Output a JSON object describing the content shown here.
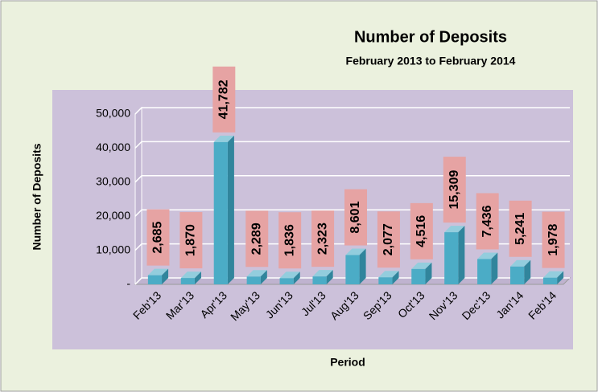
{
  "chart_data": {
    "type": "bar",
    "title": "Number of Deposits",
    "subtitle": "February 2013 to February 2014",
    "x_label": "Period",
    "y_label": "Number of Deposits",
    "categories": [
      "Feb'13",
      "Mar'13",
      "Apr'13",
      "May'13",
      "Jun'13",
      "Jul'13",
      "Aug'13",
      "Sep'13",
      "Oct'13",
      "Nov'13",
      "Dec'13",
      "Jan'14",
      "Feb'14"
    ],
    "values": [
      2685,
      1870,
      41782,
      2289,
      1836,
      2323,
      8601,
      2077,
      4516,
      15309,
      7436,
      5241,
      1978
    ],
    "value_labels": [
      "2,685",
      "1,870",
      "41,782",
      "2,289",
      "1,836",
      "2,323",
      "8,601",
      "2,077",
      "4,516",
      "15,309",
      "7,436",
      "5,241",
      "1,978"
    ],
    "color": "#4bacc6",
    "label_box_color": "#e6a3a3",
    "ylim": [
      0,
      50000
    ],
    "yticks": [
      {
        "value": 0,
        "label": "-"
      },
      {
        "value": 10000,
        "label": "10,000"
      },
      {
        "value": 20000,
        "label": "20,000"
      },
      {
        "value": 30000,
        "label": "30,000"
      },
      {
        "value": 40000,
        "label": "40,000"
      },
      {
        "value": 50000,
        "label": "50,000"
      }
    ],
    "grid": true
  }
}
